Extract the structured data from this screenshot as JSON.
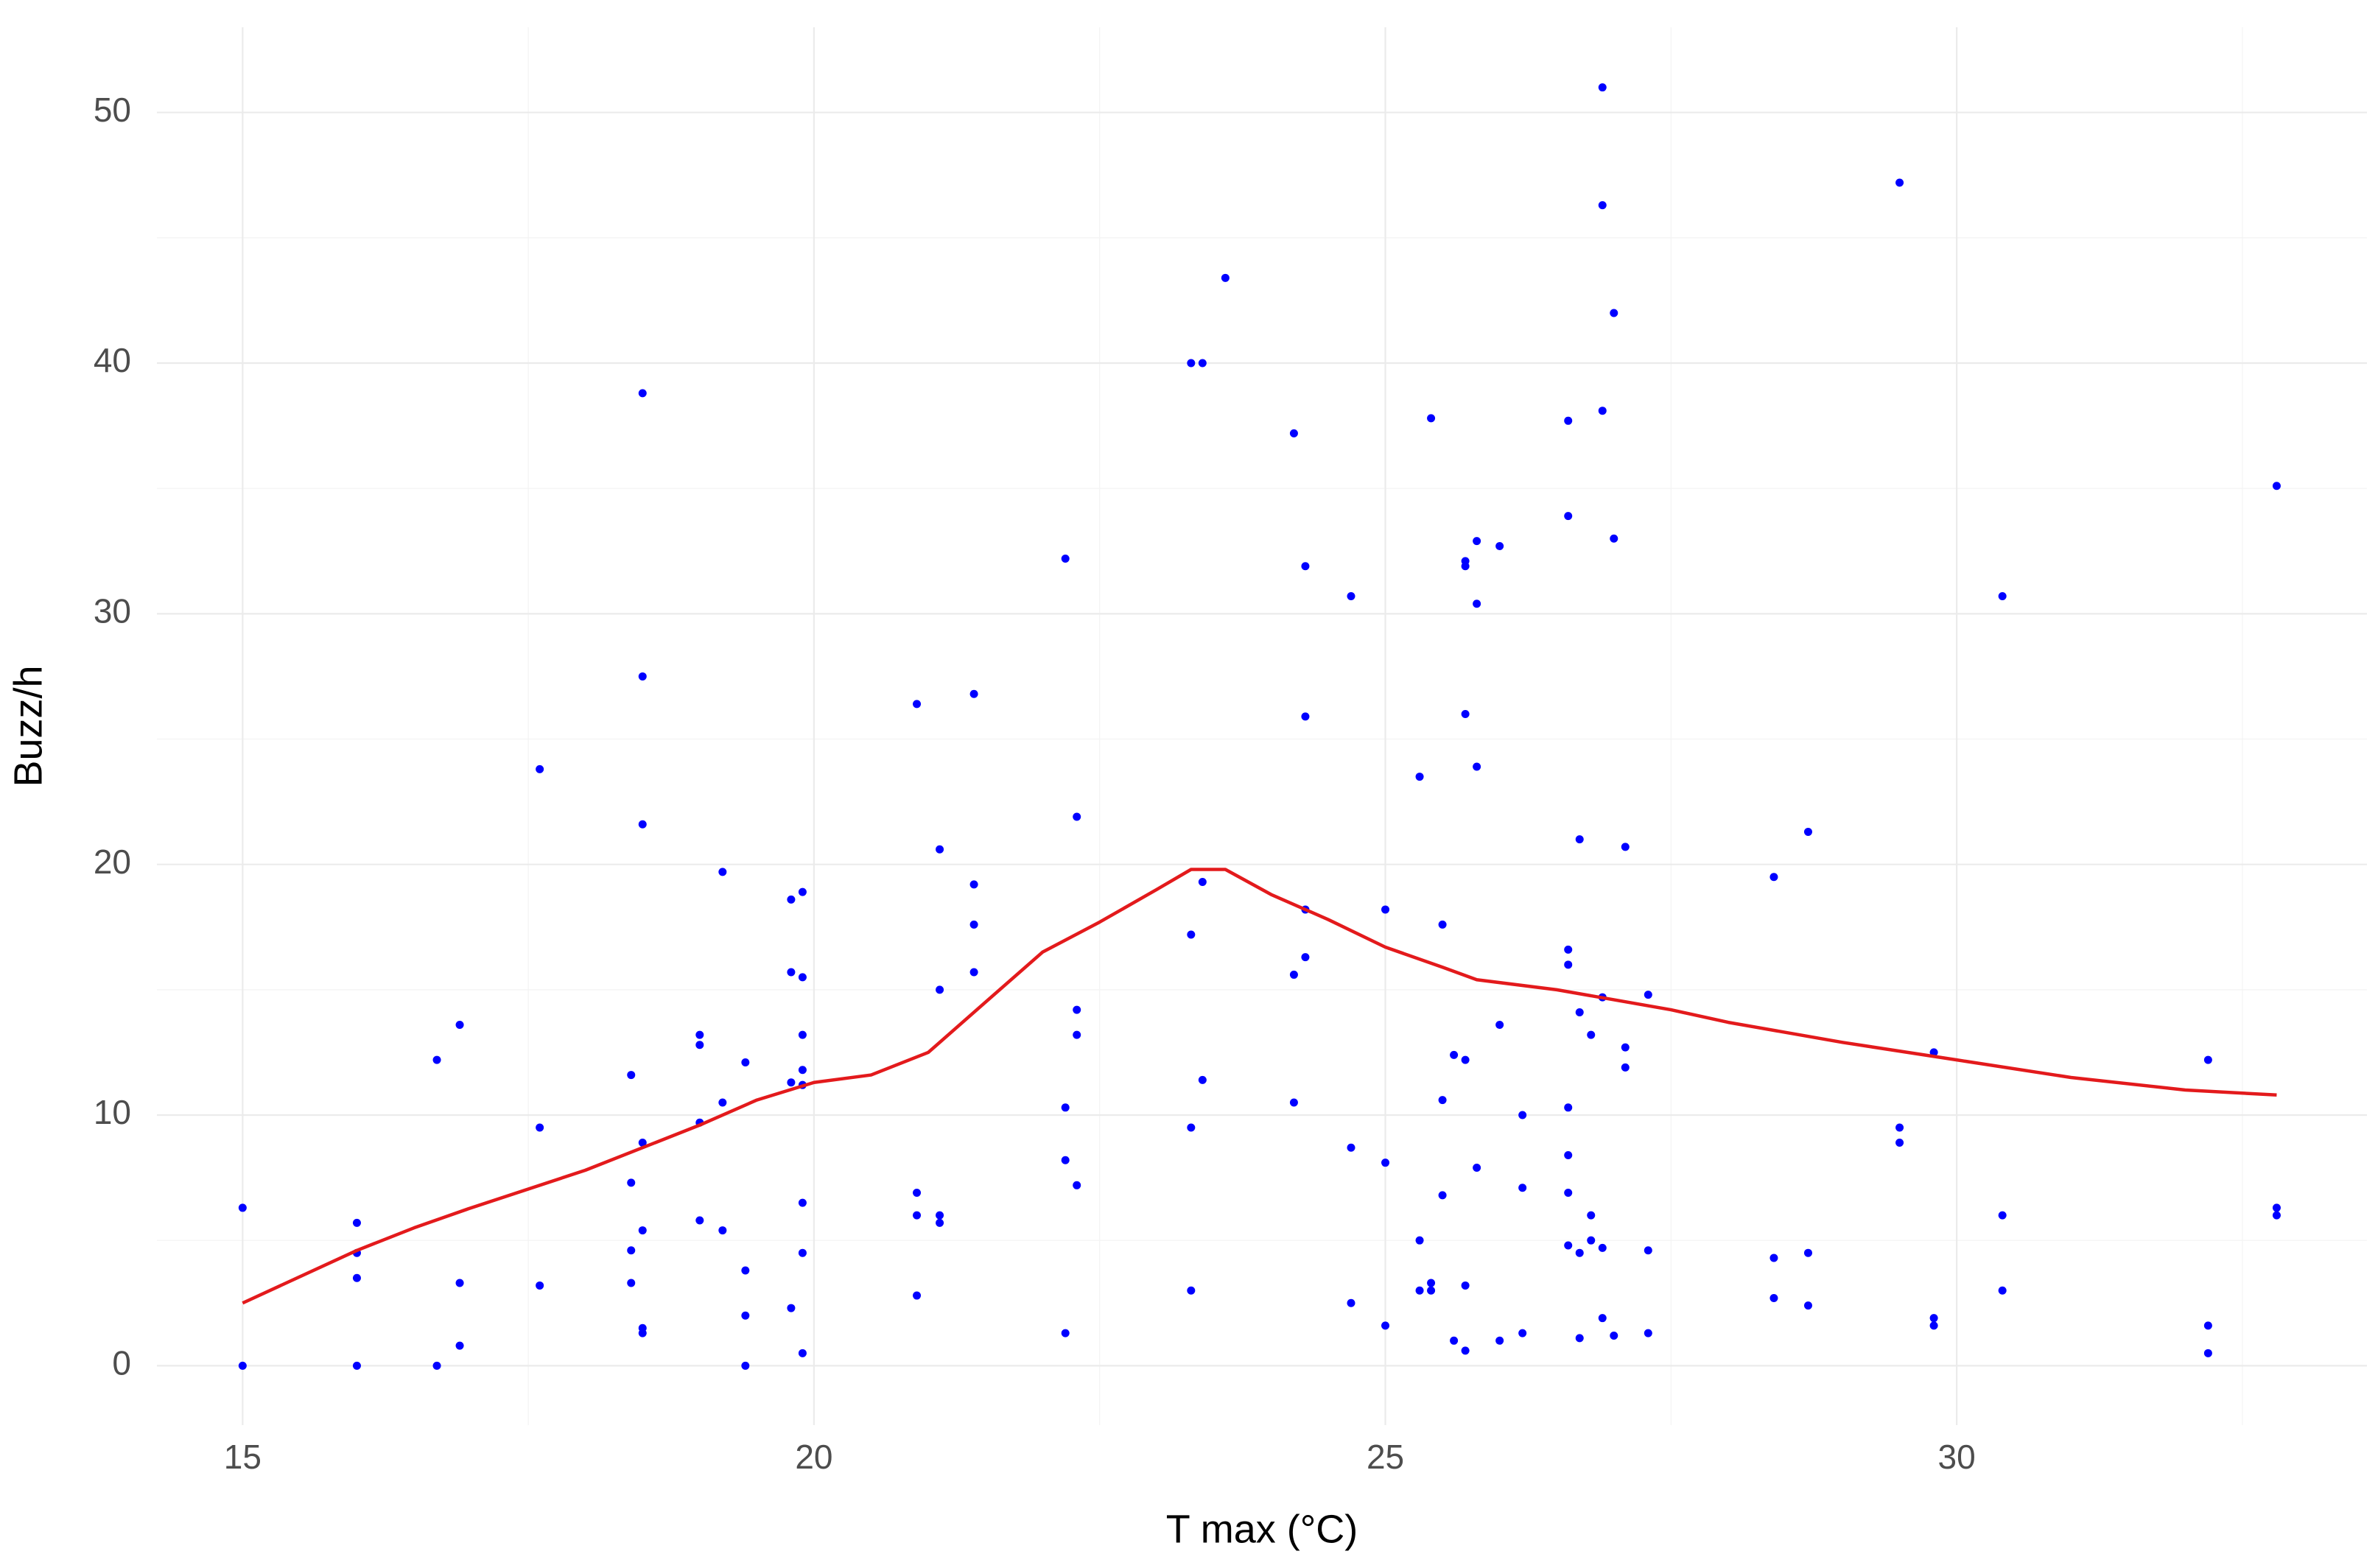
{
  "chart_data": {
    "type": "scatter",
    "x_label": "T max (°C)",
    "y_label": "Buzz/h",
    "xlim": [
      14.25,
      33.59
    ],
    "ylim": [
      -2.37,
      53.4
    ],
    "xticks": [
      15,
      20,
      25,
      30
    ],
    "yticks": [
      0,
      10,
      20,
      30,
      40,
      50
    ],
    "xminor": [
      17.5,
      22.5,
      27.5,
      32.5
    ],
    "yminor": [
      5,
      15,
      25,
      35,
      45
    ],
    "grid": true,
    "series": [
      {
        "type": "scatter",
        "color": "#0000ff",
        "x": [
          15,
          15,
          16,
          16,
          16,
          16,
          16.7,
          16.7,
          16.9,
          16.9,
          16.9,
          17.6,
          17.6,
          17.6,
          18.4,
          18.4,
          18.4,
          18.4,
          18.5,
          18.5,
          18.5,
          18.5,
          18.5,
          18.5,
          18.5,
          19,
          19,
          19,
          19,
          19.2,
          19.2,
          19.2,
          19.4,
          19.4,
          19.4,
          19.4,
          19.8,
          19.8,
          19.8,
          19.8,
          19.9,
          19.9,
          19.9,
          19.9,
          19.9,
          19.9,
          19.9,
          19.9,
          20.9,
          20.9,
          20.9,
          20.9,
          21.1,
          21.1,
          21.1,
          21.1,
          21.4,
          21.4,
          21.4,
          21.4,
          22.2,
          22.2,
          22.2,
          22.2,
          22.3,
          22.3,
          22.3,
          22.3,
          23.3,
          23.3,
          23.3,
          23.3,
          23.4,
          23.4,
          23.4,
          23.6,
          24.2,
          24.2,
          24.2,
          24.3,
          24.3,
          24.3,
          24.3,
          24.7,
          24.7,
          24.7,
          25,
          25,
          25,
          25.3,
          25.3,
          25.3,
          25.4,
          25.4,
          25.4,
          25.5,
          25.5,
          25.5,
          25.6,
          25.6,
          25.7,
          25.7,
          25.7,
          25.7,
          25.7,
          25.7,
          25.8,
          25.8,
          25.8,
          25.8,
          26,
          26,
          26,
          26.2,
          26.2,
          26.2,
          26.6,
          26.6,
          26.6,
          26.6,
          26.6,
          26.6,
          26.6,
          26.6,
          26.7,
          26.7,
          26.7,
          26.7,
          26.8,
          26.8,
          26.8,
          26.9,
          26.9,
          26.9,
          26.9,
          26.9,
          26.9,
          27,
          27,
          27,
          27.1,
          27.1,
          27.1,
          27.3,
          27.3,
          27.3,
          28.4,
          28.4,
          28.4,
          28.7,
          28.7,
          28.7,
          29.5,
          29.5,
          29.5,
          29.8,
          29.8,
          29.8,
          30.4,
          30.4,
          30.4,
          32.2,
          32.2,
          32.2,
          32.8,
          32.8,
          32.8
        ],
        "values": [
          6.3,
          0,
          5.7,
          4.5,
          3.5,
          0,
          12.2,
          0,
          13.6,
          3.3,
          0.8,
          23.8,
          9.5,
          3.2,
          11.6,
          7.3,
          4.6,
          3.3,
          38.8,
          27.5,
          21.6,
          8.9,
          5.4,
          1.5,
          1.3,
          13.2,
          12.8,
          9.7,
          5.8,
          19.7,
          10.5,
          5.4,
          12.1,
          3.8,
          2.0,
          0,
          18.6,
          15.7,
          11.3,
          2.3,
          18.9,
          15.5,
          13.2,
          11.8,
          11.2,
          6.5,
          4.5,
          0.5,
          26.4,
          6.9,
          6.0,
          2.8,
          20.6,
          15.0,
          6.0,
          5.7,
          26.8,
          19.2,
          17.6,
          15.7,
          32.2,
          10.3,
          8.2,
          1.3,
          21.9,
          14.2,
          13.2,
          7.2,
          40,
          17.2,
          9.5,
          3.0,
          40,
          19.3,
          11.4,
          43.4,
          37.2,
          15.6,
          10.5,
          31.9,
          25.9,
          18.2,
          16.3,
          30.7,
          8.7,
          2.5,
          18.2,
          8.1,
          1.6,
          23.5,
          5.0,
          3.0,
          37.8,
          3.3,
          3.0,
          17.6,
          10.6,
          6.8,
          12.4,
          1.0,
          32.1,
          31.9,
          26.0,
          12.2,
          3.2,
          0.6,
          32.9,
          30.4,
          23.9,
          7.9,
          32.7,
          13.6,
          1.0,
          10.0,
          7.1,
          1.3,
          37.7,
          33.9,
          16.6,
          16.0,
          10.3,
          8.4,
          6.9,
          4.8,
          21.0,
          14.1,
          4.5,
          1.1,
          13.2,
          6.0,
          5.0,
          51.0,
          46.3,
          38.1,
          14.7,
          4.7,
          1.9,
          42.0,
          33.0,
          1.2,
          20.7,
          12.7,
          11.9,
          14.8,
          4.6,
          1.3,
          19.5,
          4.3,
          2.7,
          21.3,
          4.5,
          2.4,
          47.2,
          9.5,
          8.9,
          12.5,
          1.9,
          1.6,
          30.7,
          6.0,
          3.0,
          12.2,
          1.6,
          0.5,
          35.1,
          6.3,
          6.0
        ]
      },
      {
        "type": "line",
        "color": "#e31a1c",
        "x": [
          15,
          16,
          16.5,
          17,
          18,
          19,
          19.5,
          20,
          20.5,
          21,
          21.5,
          22,
          22.5,
          23,
          23.3,
          23.6,
          24,
          24.5,
          25,
          25.5,
          25.8,
          26.5,
          27,
          27.5,
          28,
          29,
          30,
          31,
          32,
          32.8
        ],
        "values": [
          2.5,
          4.6,
          5.5,
          6.3,
          7.8,
          9.6,
          10.6,
          11.3,
          11.6,
          12.5,
          14.5,
          16.5,
          17.7,
          19.0,
          19.8,
          19.8,
          18.8,
          17.8,
          16.7,
          15.9,
          15.4,
          15.0,
          14.6,
          14.2,
          13.7,
          12.9,
          12.2,
          11.5,
          11.0,
          10.8
        ]
      }
    ]
  }
}
